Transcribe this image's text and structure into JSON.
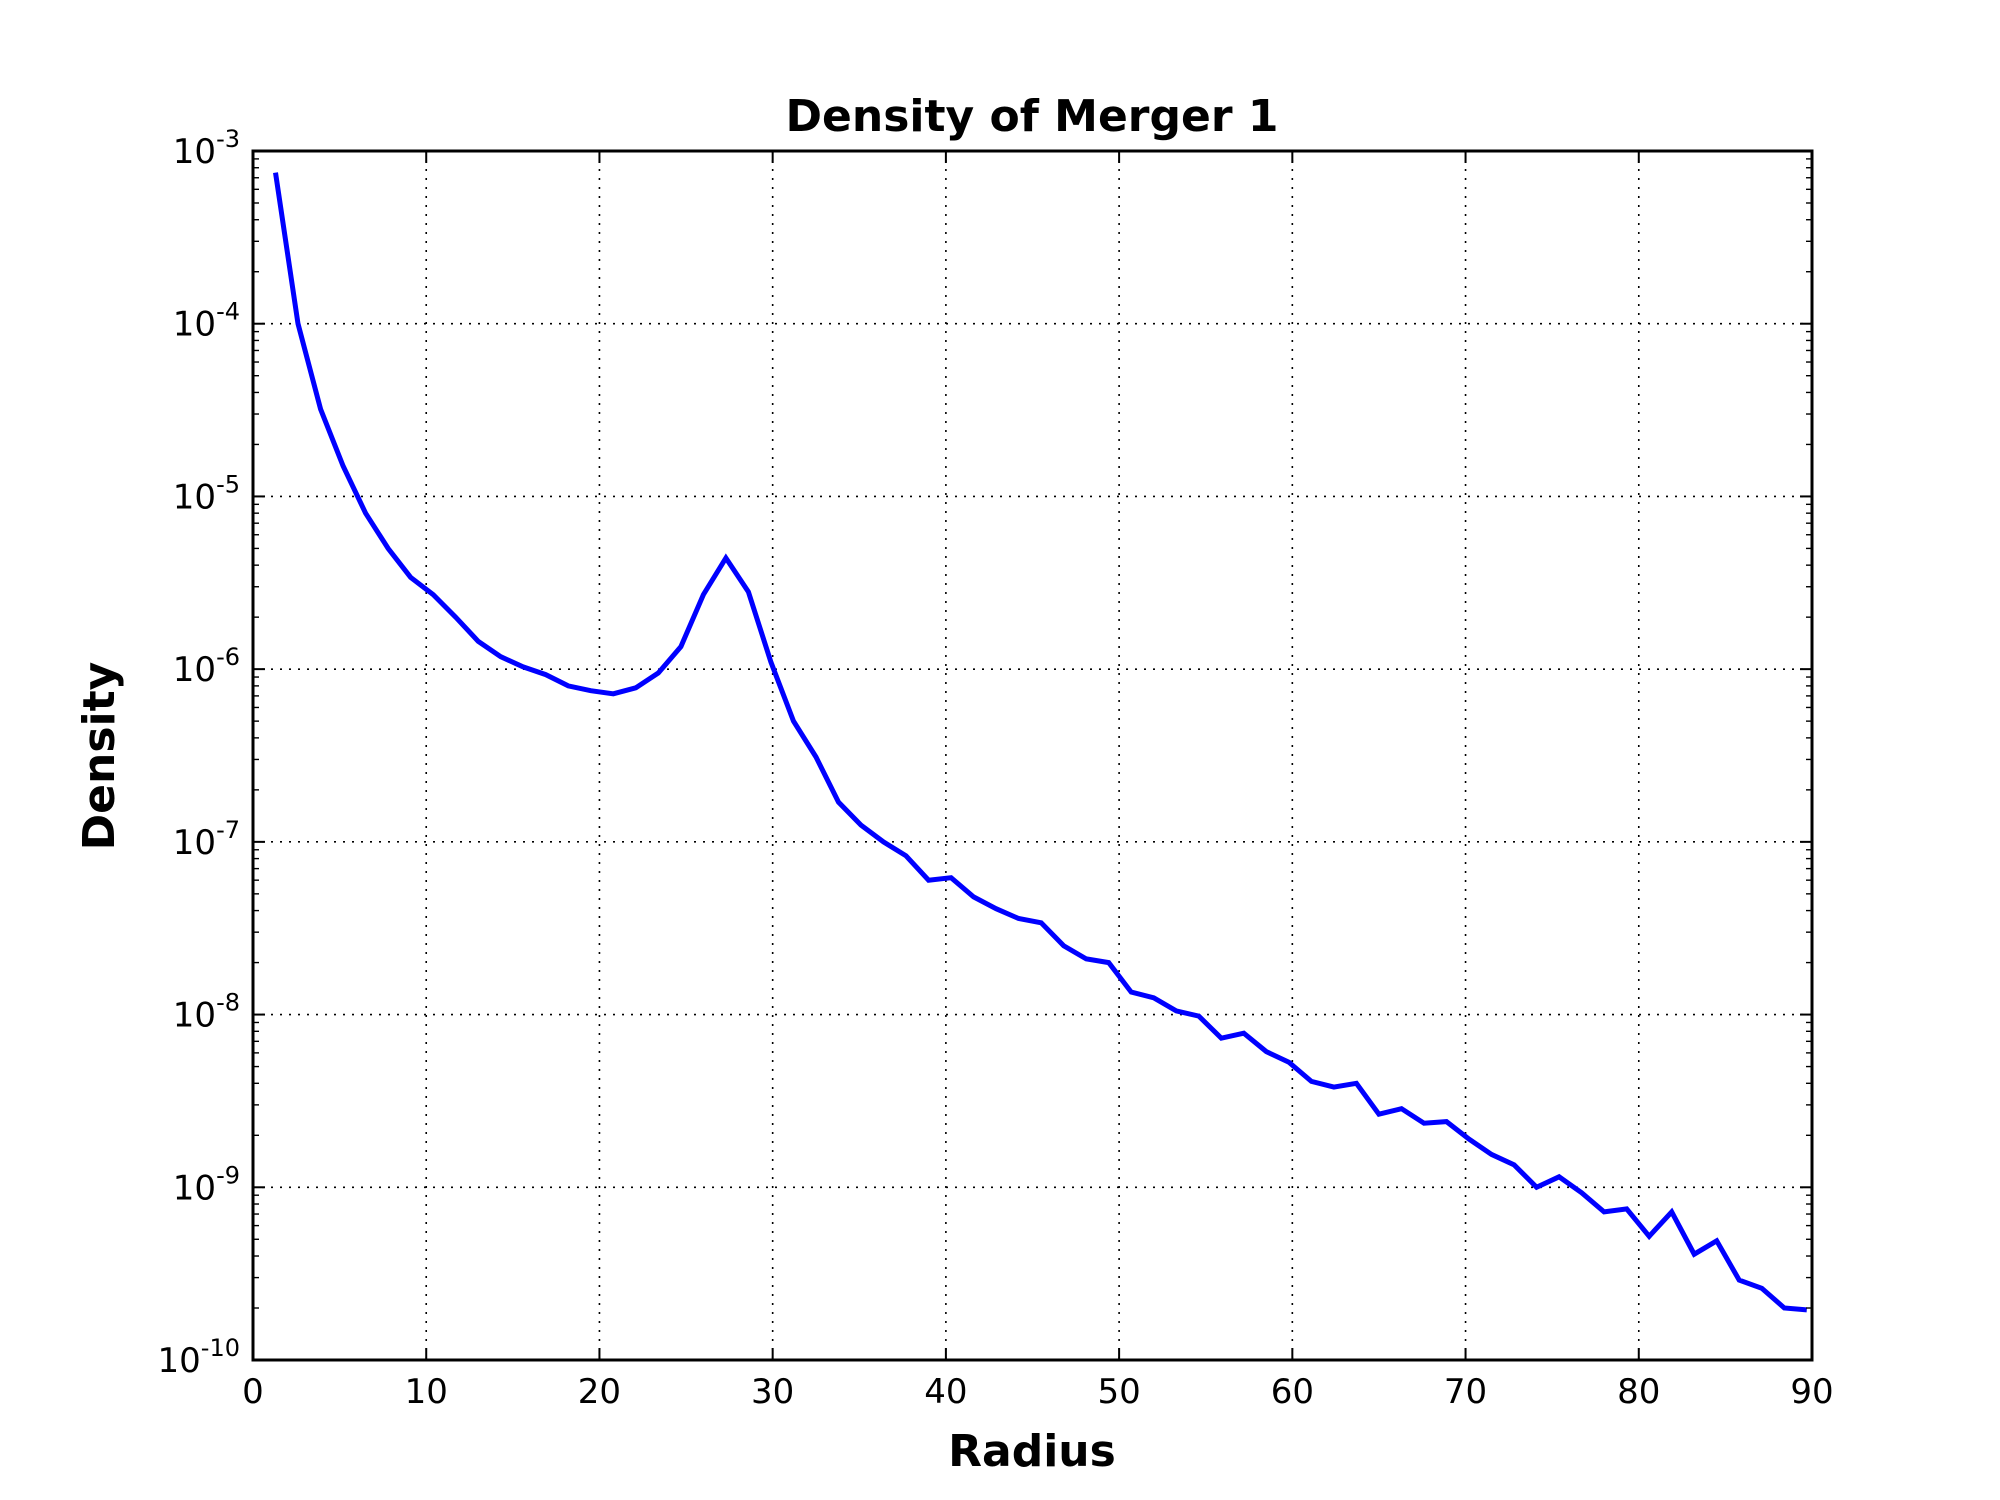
{
  "chart_data": {
    "type": "line",
    "title": "Density of Merger 1",
    "xlabel": "Radius",
    "ylabel": "Density",
    "xlim": [
      0,
      90
    ],
    "ylim": [
      1e-10,
      0.001
    ],
    "yscale": "log",
    "grid": true,
    "line_color": "#0000ff",
    "x_ticks": [
      0,
      10,
      20,
      30,
      40,
      50,
      60,
      70,
      80,
      90
    ],
    "x_tick_labels": [
      "0",
      "10",
      "20",
      "30",
      "40",
      "50",
      "60",
      "70",
      "80",
      "90"
    ],
    "y_ticks": [
      0.001,
      0.0001,
      1e-05,
      1e-06,
      1e-07,
      1e-08,
      1e-09,
      1e-10
    ],
    "y_tick_labels": [
      {
        "base": "10",
        "exp": "-3"
      },
      {
        "base": "10",
        "exp": "-4"
      },
      {
        "base": "10",
        "exp": "-5"
      },
      {
        "base": "10",
        "exp": "-6"
      },
      {
        "base": "10",
        "exp": "-7"
      },
      {
        "base": "10",
        "exp": "-8"
      },
      {
        "base": "10",
        "exp": "-9"
      },
      {
        "base": "10",
        "exp": "-10"
      }
    ],
    "series": [
      {
        "x": [
          1.3,
          2.6,
          3.9,
          5.2,
          6.5,
          7.8,
          9.1,
          10.4,
          11.7,
          13.0,
          14.3,
          15.6,
          16.9,
          18.2,
          19.5,
          20.8,
          22.1,
          23.4,
          24.7,
          26.0,
          27.3,
          28.6,
          29.9,
          31.2,
          32.5,
          33.8,
          35.1,
          36.4,
          37.7,
          39.0,
          40.3,
          41.6,
          42.9,
          44.2,
          45.5,
          46.8,
          48.1,
          49.4,
          50.7,
          52.0,
          53.3,
          54.6,
          55.9,
          57.2,
          58.5,
          59.8,
          61.1,
          62.4,
          63.7,
          65.0,
          66.3,
          67.6,
          68.9,
          70.2,
          71.5,
          72.8,
          74.1,
          75.4,
          76.7,
          78.0,
          79.3,
          80.6,
          81.9,
          83.2,
          84.5,
          85.8,
          87.1,
          88.4,
          89.7
        ],
        "y": [
          0.00075,
          0.0001,
          3.2e-05,
          1.5e-05,
          8e-06,
          5e-06,
          3.4e-06,
          2.7e-06,
          2e-06,
          1.45e-06,
          1.18e-06,
          1.03e-06,
          9.3e-07,
          8e-07,
          7.5e-07,
          7.2e-07,
          7.8e-07,
          9.5e-07,
          1.35e-06,
          2.7e-06,
          4.4e-06,
          2.8e-06,
          1.1e-06,
          5e-07,
          3.1e-07,
          1.7e-07,
          1.25e-07,
          1e-07,
          8.3e-08,
          6e-08,
          6.2e-08,
          4.8e-08,
          4.1e-08,
          3.6e-08,
          3.4e-08,
          2.5e-08,
          2.1e-08,
          2e-08,
          1.35e-08,
          1.25e-08,
          1.05e-08,
          9.8e-09,
          7.3e-09,
          7.8e-09,
          6.1e-09,
          5.3e-09,
          4.1e-09,
          3.8e-09,
          4e-09,
          2.65e-09,
          2.85e-09,
          2.35e-09,
          2.4e-09,
          1.9e-09,
          1.55e-09,
          1.35e-09,
          1e-09,
          1.15e-09,
          9.3e-10,
          7.2e-10,
          7.5e-10,
          5.2e-10,
          7.2e-10,
          4.1e-10,
          4.9e-10,
          2.9e-10,
          2.6e-10,
          2e-10,
          1.95e-10
        ]
      }
    ]
  }
}
